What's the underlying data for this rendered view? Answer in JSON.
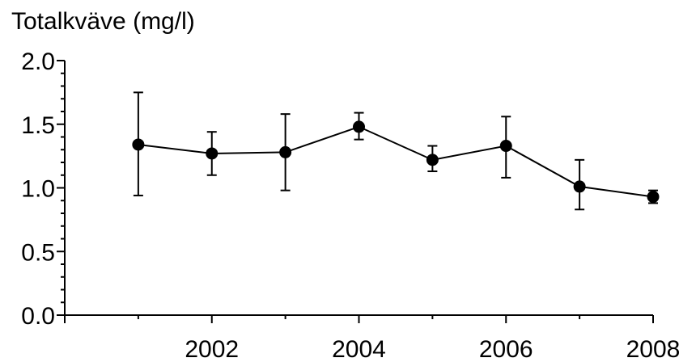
{
  "chart_data": {
    "type": "line",
    "title": "Totalkväve (mg/l)",
    "xlabel": "",
    "ylabel": "",
    "xlim": [
      2000.0,
      2008.0
    ],
    "ylim": [
      0.0,
      2.0
    ],
    "x_ticks": [
      2002,
      2004,
      2006,
      2008
    ],
    "y_ticks": [
      "0.0",
      "0.5",
      "1.0",
      "1.5",
      "2.0"
    ],
    "grid": false,
    "legend": "none",
    "series": [
      {
        "x": [
          2001,
          2002,
          2003,
          2004,
          2005,
          2006,
          2007,
          2008
        ],
        "y": [
          1.34,
          1.27,
          1.28,
          1.48,
          1.22,
          1.33,
          1.01,
          0.93
        ],
        "err_low": [
          0.94,
          1.1,
          0.98,
          1.38,
          1.13,
          1.08,
          0.83,
          0.88
        ],
        "err_high": [
          1.75,
          1.44,
          1.58,
          1.59,
          1.33,
          1.56,
          1.22,
          0.98
        ]
      }
    ],
    "colors": {
      "line": "#000000",
      "marker": "#000000"
    }
  }
}
